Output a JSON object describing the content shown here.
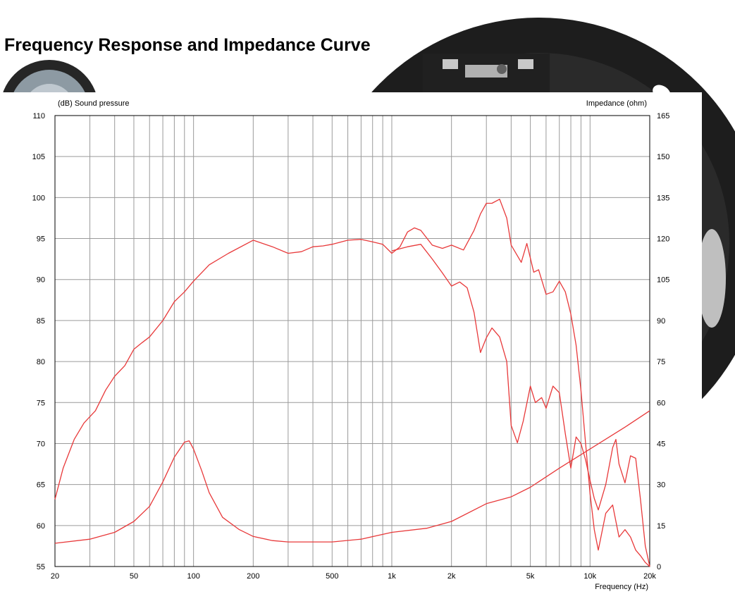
{
  "page": {
    "title": "Frequency Response and Impedance Curve",
    "photo_icons": [
      "speaker-photo-icon",
      "speaker-thumbnail-icon"
    ]
  },
  "chart_data": {
    "type": "line",
    "title": "Frequency Response and Impedance Curve",
    "xlabel": "Frequency  (Hz)",
    "ylabel": "(dB)  Sound pressure",
    "y2label": "Impedance  (ohm)",
    "xscale": "log",
    "xlim": [
      20,
      20000
    ],
    "ylim": [
      55,
      110
    ],
    "y2lim": [
      0,
      165
    ],
    "grid": true,
    "x_ticks": [
      {
        "value": 20,
        "label": "20"
      },
      {
        "value": 50,
        "label": "50"
      },
      {
        "value": 100,
        "label": "100"
      },
      {
        "value": 200,
        "label": "200"
      },
      {
        "value": 500,
        "label": "500"
      },
      {
        "value": 1000,
        "label": "1k"
      },
      {
        "value": 2000,
        "label": "2k"
      },
      {
        "value": 5000,
        "label": "5k"
      },
      {
        "value": 10000,
        "label": "10k"
      },
      {
        "value": 20000,
        "label": "20k"
      }
    ],
    "y_ticks": [
      110,
      105,
      100,
      95,
      90,
      85,
      80,
      75,
      70,
      65,
      60,
      55
    ],
    "y2_ticks": [
      165,
      150,
      135,
      120,
      105,
      90,
      75,
      60,
      45,
      30,
      15,
      0
    ],
    "line_color": "#e8393a",
    "series": [
      {
        "axis": "left",
        "x": [
          20,
          22,
          25,
          28,
          32,
          36,
          40,
          45,
          50,
          55,
          60,
          70,
          80,
          90,
          100,
          120,
          150,
          200,
          250,
          300,
          350,
          400,
          450,
          500,
          600,
          700,
          800,
          900,
          1000,
          1100,
          1200,
          1300,
          1400,
          1600,
          1800,
          2000,
          2300,
          2600,
          2800,
          3000,
          3200,
          3500,
          3800,
          4000,
          4500,
          4800,
          5200,
          5500,
          6000,
          6500,
          7000,
          7500,
          8000,
          8500,
          9000,
          9500,
          10000,
          10500,
          11000,
          12000,
          13000,
          14000,
          15000,
          16000,
          17000,
          18000,
          19000,
          20000
        ],
        "y": [
          63.2,
          67,
          70.5,
          72.5,
          74,
          76.5,
          78.2,
          79.5,
          81.5,
          82.3,
          83,
          85,
          87.3,
          88.5,
          89.8,
          91.8,
          93.2,
          94.8,
          94.0,
          93.2,
          93.4,
          94.0,
          94.1,
          94.3,
          94.8,
          94.9,
          94.6,
          94.3,
          93.2,
          94.0,
          95.8,
          96.3,
          96.0,
          94.2,
          93.8,
          94.2,
          93.6,
          96.0,
          98.0,
          99.3,
          99.3,
          99.8,
          97.5,
          94.2,
          92.1,
          94.4,
          90.9,
          91.2,
          88.2,
          88.5,
          89.8,
          88.5,
          85.8,
          82,
          76.5,
          70,
          63.9,
          59.5,
          57,
          61.5,
          62.5,
          58.6,
          59.5,
          58.6,
          57,
          56.3,
          55.5,
          55
        ]
      },
      {
        "axis": "left",
        "x": [
          1000,
          1200,
          1400,
          1600,
          1800,
          2000,
          2200,
          2400,
          2600,
          2800,
          3000,
          3200,
          3500,
          3800,
          4000,
          4300,
          4600,
          5000,
          5300,
          5700,
          6000,
          6500,
          7000,
          7500,
          8000,
          8500,
          9000,
          9500,
          10000,
          10500,
          11000,
          12000,
          13000,
          13500,
          14000,
          15000,
          16000,
          17000,
          18000,
          19000,
          20000
        ],
        "y": [
          93.5,
          94.0,
          94.3,
          92.5,
          90.8,
          89.2,
          89.7,
          89.0,
          86.0,
          81.1,
          82.9,
          84.1,
          83.0,
          80.0,
          72.2,
          70.1,
          72.7,
          77.0,
          75.0,
          75.6,
          74.3,
          77.0,
          76.2,
          71.2,
          67.0,
          70.8,
          70.0,
          68.0,
          65.5,
          63.3,
          61.9,
          65.0,
          69.5,
          70.5,
          67.5,
          65.2,
          68.5,
          68.2,
          63.0,
          57.5,
          55.0
        ]
      },
      {
        "axis": "right",
        "x": [
          20,
          30,
          40,
          50,
          60,
          70,
          80,
          90,
          95,
          100,
          110,
          120,
          140,
          170,
          200,
          250,
          300,
          400,
          500,
          700,
          1000,
          1500,
          2000,
          3000,
          4000,
          5000,
          7000,
          10000,
          15000,
          20000
        ],
        "y": [
          8.5,
          10,
          12.5,
          16.5,
          22,
          31,
          40,
          45.5,
          46,
          43,
          35,
          27,
          18,
          13.5,
          11.0,
          9.5,
          9.0,
          9.0,
          9.0,
          10.0,
          12.5,
          14.0,
          16.5,
          23,
          25.5,
          29,
          36,
          43,
          51,
          57
        ]
      }
    ]
  }
}
